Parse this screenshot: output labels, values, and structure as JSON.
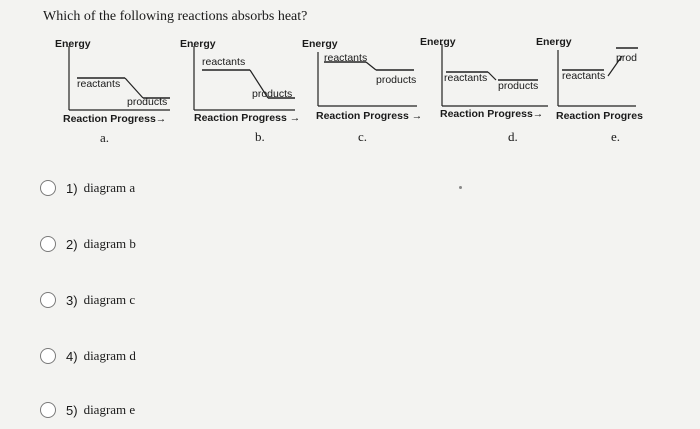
{
  "question": "Which of the following reactions absorbs heat?",
  "diagrams": [
    {
      "letter": "a.",
      "energy": "Energy",
      "reactants": "reactants",
      "products": "products",
      "xaxis": "Reaction Progress→"
    },
    {
      "letter": "b.",
      "energy": "Energy",
      "reactants": "reactants",
      "products": "products",
      "xaxis": "Reaction Progress →"
    },
    {
      "letter": "c.",
      "energy": "Energy",
      "reactants": "reactants",
      "products": "products",
      "xaxis": "Reaction Progress →"
    },
    {
      "letter": "d.",
      "energy": "Energy",
      "reactants": "reactants",
      "products": "products",
      "xaxis": "Reaction Progress→"
    },
    {
      "letter": "e.",
      "energy": "Energy",
      "reactants": "reactants",
      "products": "prod",
      "xaxis": "Reaction Progres"
    }
  ],
  "options": [
    {
      "number": "1)",
      "label": "diagram a"
    },
    {
      "number": "2)",
      "label": "diagram b"
    },
    {
      "number": "3)",
      "label": "diagram c"
    },
    {
      "number": "4)",
      "label": "diagram d"
    },
    {
      "number": "5)",
      "label": "diagram e"
    }
  ]
}
